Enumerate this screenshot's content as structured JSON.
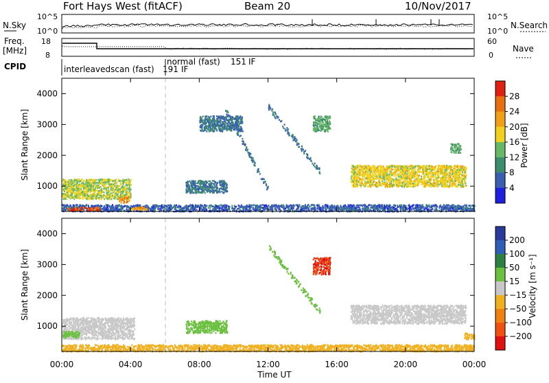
{
  "header": {
    "radar": "Fort Hays West (fitACF)",
    "beam": "Beam 20",
    "date": "10/Nov/2017"
  },
  "summary": {
    "nsky_label": "N.Sky",
    "nsky_ticks": [
      "10^5",
      "10^0"
    ],
    "nsearch_label": "N.Search",
    "nsearch_ticks": [
      "10^5",
      "10^0"
    ],
    "freq_label": "Freq.",
    "freq_unit": "[MHz]",
    "freq_ticks": [
      "18",
      "8"
    ],
    "nave_label": "Nave",
    "nave_ticks": [
      "60",
      "0"
    ],
    "cpid_label": "CPID",
    "cpid_modes": [
      {
        "label": "interleavedscan (fast)",
        "id": "191",
        "suffix": "IF",
        "start_hour": 0,
        "end_hour": 6
      },
      {
        "label": "normal (fast)",
        "id": "151",
        "suffix": "IF",
        "start_hour": 6,
        "end_hour": 24
      }
    ]
  },
  "chart_data": [
    {
      "type": "heatmap",
      "panel": "power",
      "xlabel": "Time UT",
      "ylabel": "Slant Range [km]",
      "xlim": [
        0,
        24
      ],
      "ylim": [
        180,
        4500
      ],
      "x_ticks": [
        "00:00",
        "04:00",
        "08:00",
        "12:00",
        "16:00",
        "20:00",
        "00:00"
      ],
      "y_ticks": [
        "1000",
        "2000",
        "3000",
        "4000"
      ],
      "colorbar": {
        "label": "Power [dB]",
        "ticks": [
          "4",
          "8",
          "12",
          "16",
          "20",
          "24",
          "28"
        ],
        "colors": [
          "#1f1fe0",
          "#3a5fb0",
          "#3c8d6e",
          "#69b865",
          "#f0d21e",
          "#f0a018",
          "#e87010",
          "#e02010"
        ]
      },
      "features": [
        {
          "name": "near-range band",
          "t_start": 0.0,
          "t_end": 24.0,
          "range_min": 200,
          "range_max": 420,
          "value": 6
        },
        {
          "name": "strong patch 00-02 UT",
          "t_start": 0.3,
          "t_end": 2.2,
          "range_min": 220,
          "range_max": 330,
          "value": 28
        },
        {
          "name": "scatter 00-04 UT",
          "t_start": 0.0,
          "t_end": 4.0,
          "range_min": 600,
          "range_max": 1250,
          "value": 16
        },
        {
          "name": "patch ~03:30 UT",
          "t_start": 3.3,
          "t_end": 3.9,
          "range_min": 480,
          "range_max": 680,
          "value": 24
        },
        {
          "name": "weak patch 04-05 UT",
          "t_start": 4.0,
          "t_end": 5.0,
          "range_min": 250,
          "range_max": 350,
          "value": 22
        },
        {
          "name": "patch 07-09 UT",
          "t_start": 7.2,
          "t_end": 9.6,
          "range_min": 800,
          "range_max": 1200,
          "value": 8
        },
        {
          "name": "patch 08-10 UT",
          "t_start": 8.0,
          "t_end": 10.5,
          "range_min": 2800,
          "range_max": 3300,
          "value": 8
        },
        {
          "name": "descending arc 09:30-12 UT",
          "t_start": 9.5,
          "t_end": 12.0,
          "range_min": 900,
          "range_max": 3500,
          "value": 8
        },
        {
          "name": "descending arc 12-15 UT",
          "t_start": 12.0,
          "t_end": 15.0,
          "range_min": 1500,
          "range_max": 3600,
          "value": 8
        },
        {
          "name": "patch ~15 UT",
          "t_start": 14.6,
          "t_end": 15.6,
          "range_min": 2800,
          "range_max": 3300,
          "value": 12
        },
        {
          "name": "main band 17-23:30 UT",
          "t_start": 16.8,
          "t_end": 23.5,
          "range_min": 1000,
          "range_max": 1700,
          "value": 18
        },
        {
          "name": "patch ~23 UT",
          "t_start": 22.6,
          "t_end": 23.2,
          "range_min": 2100,
          "range_max": 2400,
          "value": 12
        }
      ]
    },
    {
      "type": "heatmap",
      "panel": "velocity",
      "xlabel": "Time UT",
      "ylabel": "Slant Range [km]",
      "xlim": [
        0,
        24
      ],
      "ylim": [
        180,
        4500
      ],
      "x_ticks": [
        "00:00",
        "04:00",
        "08:00",
        "12:00",
        "16:00",
        "20:00",
        "00:00"
      ],
      "y_ticks": [
        "1000",
        "2000",
        "3000",
        "4000"
      ],
      "colorbar": {
        "label": "Velocity [m s⁻¹]",
        "ticks": [
          "200",
          "100",
          "50",
          "15",
          "−15",
          "−50",
          "−100",
          "−200"
        ],
        "colors": [
          "#2a3a9a",
          "#2f5fb6",
          "#2e8040",
          "#6cc040",
          "#c8c8c8",
          "#f0b020",
          "#f08010",
          "#f05010",
          "#e01010"
        ]
      },
      "features": [
        {
          "name": "near-range band",
          "t_start": 0.0,
          "t_end": 24.0,
          "range_min": 200,
          "range_max": 420,
          "value": -40
        },
        {
          "name": "ground scatter 00-04 UT",
          "t_start": 0.0,
          "t_end": 4.2,
          "range_min": 600,
          "range_max": 1300,
          "value": 0
        },
        {
          "name": "positive patch 00-01 UT",
          "t_start": 0.0,
          "t_end": 1.0,
          "range_min": 650,
          "range_max": 850,
          "value": 30
        },
        {
          "name": "patch 07-09 UT",
          "t_start": 7.2,
          "t_end": 9.6,
          "range_min": 800,
          "range_max": 1200,
          "value": 30
        },
        {
          "name": "descending arc 12-15 UT",
          "t_start": 12.0,
          "t_end": 15.0,
          "range_min": 1500,
          "range_max": 3600,
          "value": 30
        },
        {
          "name": "negative patch ~15 UT",
          "t_start": 14.6,
          "t_end": 15.6,
          "range_min": 2700,
          "range_max": 3250,
          "value": -200
        },
        {
          "name": "main band 17-23:30 UT",
          "t_start": 16.8,
          "t_end": 23.5,
          "range_min": 1100,
          "range_max": 1700,
          "value": 0
        },
        {
          "name": "patch ~23:30 UT",
          "t_start": 23.4,
          "t_end": 24.0,
          "range_min": 600,
          "range_max": 800,
          "value": -40
        }
      ]
    }
  ]
}
